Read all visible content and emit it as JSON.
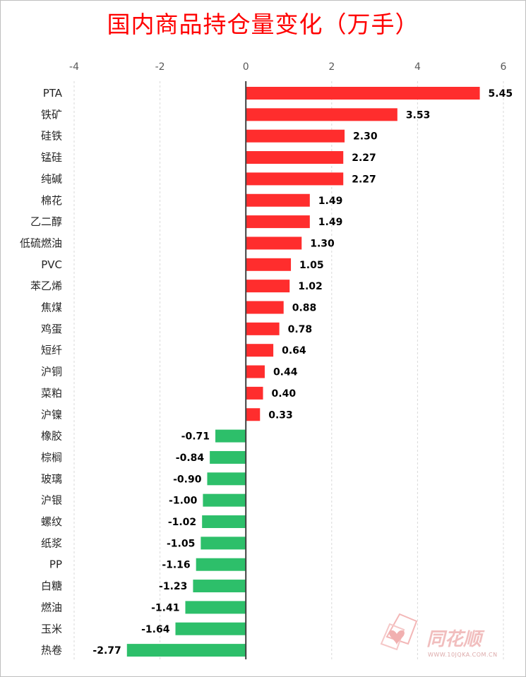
{
  "title": "国内商品持仓量变化（万手）",
  "colors": {
    "positive": "#ff2d2d",
    "negative": "#2dbf6a",
    "title": "#ff0000"
  },
  "watermark": {
    "brand": "同花顺",
    "url": "WWW.10JQKA.COM.CN"
  },
  "chart_data": {
    "type": "bar",
    "orientation": "horizontal",
    "title": "国内商品持仓量变化（万手）",
    "xlim": [
      -4,
      6
    ],
    "xticks": [
      -4,
      -2,
      0,
      2,
      4,
      6
    ],
    "grid": "vertical dashed",
    "categories": [
      "PTA",
      "铁矿",
      "硅铁",
      "锰硅",
      "纯碱",
      "棉花",
      "乙二醇",
      "低硫燃油",
      "PVC",
      "苯乙烯",
      "焦煤",
      "鸡蛋",
      "短纤",
      "沪铜",
      "菜粕",
      "沪镍",
      "橡胶",
      "棕榈",
      "玻璃",
      "沪银",
      "螺纹",
      "纸浆",
      "PP",
      "白糖",
      "燃油",
      "玉米",
      "热卷"
    ],
    "values": [
      5.45,
      3.53,
      2.3,
      2.27,
      2.27,
      1.49,
      1.49,
      1.3,
      1.05,
      1.02,
      0.88,
      0.78,
      0.64,
      0.44,
      0.4,
      0.33,
      -0.71,
      -0.84,
      -0.9,
      -1.0,
      -1.02,
      -1.05,
      -1.16,
      -1.23,
      -1.41,
      -1.64,
      -2.77
    ],
    "labels": [
      "5.45",
      "3.53",
      "2.30",
      "2.27",
      "2.27",
      "1.49",
      "1.49",
      "1.30",
      "1.05",
      "1.02",
      "0.88",
      "0.78",
      "0.64",
      "0.44",
      "0.40",
      "0.33",
      "-0.71",
      "-0.84",
      "-0.90",
      "-1.00",
      "-1.02",
      "-1.05",
      "-1.16",
      "-1.23",
      "-1.41",
      "-1.64",
      "-2.77"
    ]
  }
}
